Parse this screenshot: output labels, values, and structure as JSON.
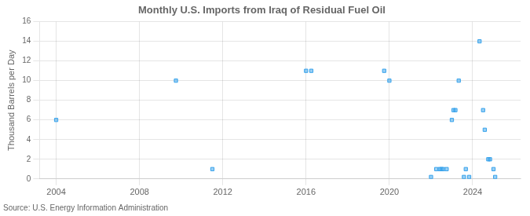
{
  "chart_data": {
    "type": "scatter",
    "title": "Monthly U.S. Imports from Iraq of Residual Fuel Oil",
    "ylabel": "Thousand Barrels per Day",
    "annotations": [
      "Source: U.S. Energy Information Administration"
    ],
    "x": [
      2004.0,
      2009.75,
      2011.5,
      2016.0,
      2016.25,
      2019.75,
      2020.0,
      2022.0,
      2022.25,
      2022.42,
      2022.5,
      2022.58,
      2022.75,
      2023.0,
      2023.08,
      2023.17,
      2023.33,
      2023.58,
      2023.67,
      2023.83,
      2024.33,
      2024.5,
      2024.58,
      2024.75,
      2024.83,
      2025.0,
      2025.08
    ],
    "values": [
      6,
      10,
      1,
      11,
      11,
      11,
      10,
      0.2,
      1,
      1,
      1,
      1,
      1,
      6,
      7,
      7,
      10,
      0.2,
      1,
      0.2,
      14,
      7,
      5,
      2,
      2,
      1,
      0.2
    ],
    "xlim": [
      2003.2,
      2026.3
    ],
    "xticks": [
      2004,
      2008,
      2012,
      2016,
      2020,
      2024
    ],
    "ylim": [
      0,
      16
    ],
    "yticks": [
      0,
      2,
      4,
      6,
      8,
      10,
      12,
      14,
      16
    ],
    "marker": "square",
    "grid": true
  }
}
